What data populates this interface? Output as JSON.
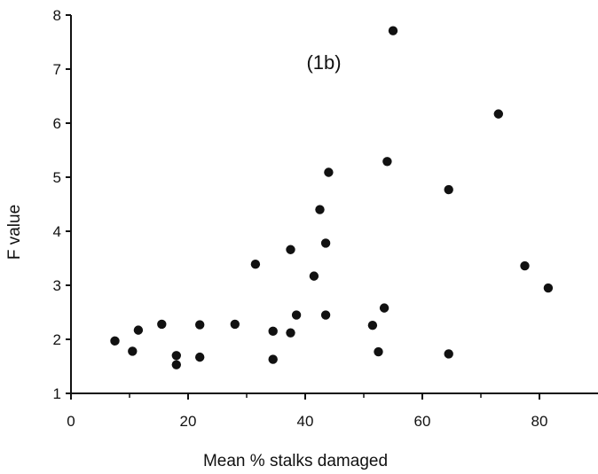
{
  "chart_data": {
    "type": "scatter",
    "title": "",
    "annotation": "(1b)",
    "xlabel": "Mean % stalks damaged",
    "ylabel": "F value",
    "xlim": [
      0,
      90
    ],
    "ylim": [
      1,
      8
    ],
    "xticks": [
      0,
      20,
      40,
      60,
      80
    ],
    "xtick_labels": [
      "0",
      "20",
      "40",
      "60",
      "80"
    ],
    "yticks": [
      1,
      2,
      3,
      4,
      5,
      6,
      7,
      8
    ],
    "ytick_labels": [
      "1",
      "2",
      "3",
      "4",
      "5",
      "6",
      "7",
      "8"
    ],
    "grid": false,
    "legend": "none",
    "marker_color": "#111111",
    "points": [
      {
        "x": 7.5,
        "y": 1.97
      },
      {
        "x": 10.5,
        "y": 1.78
      },
      {
        "x": 11.5,
        "y": 2.17
      },
      {
        "x": 15.5,
        "y": 2.28
      },
      {
        "x": 18,
        "y": 1.53
      },
      {
        "x": 18,
        "y": 1.7
      },
      {
        "x": 22,
        "y": 1.67
      },
      {
        "x": 22,
        "y": 2.27
      },
      {
        "x": 28,
        "y": 2.28
      },
      {
        "x": 31.5,
        "y": 3.39
      },
      {
        "x": 34.5,
        "y": 2.15
      },
      {
        "x": 34.5,
        "y": 1.63
      },
      {
        "x": 37.5,
        "y": 2.12
      },
      {
        "x": 37.5,
        "y": 3.66
      },
      {
        "x": 38.5,
        "y": 2.45
      },
      {
        "x": 41.5,
        "y": 3.17
      },
      {
        "x": 42.5,
        "y": 4.4
      },
      {
        "x": 43.5,
        "y": 3.78
      },
      {
        "x": 43.5,
        "y": 2.45
      },
      {
        "x": 44,
        "y": 5.09
      },
      {
        "x": 51.5,
        "y": 2.26
      },
      {
        "x": 52.5,
        "y": 1.77
      },
      {
        "x": 53.5,
        "y": 2.58
      },
      {
        "x": 54,
        "y": 5.29
      },
      {
        "x": 55,
        "y": 7.71
      },
      {
        "x": 64.5,
        "y": 4.77
      },
      {
        "x": 64.5,
        "y": 1.73
      },
      {
        "x": 73,
        "y": 6.17
      },
      {
        "x": 77.5,
        "y": 3.36
      },
      {
        "x": 81.5,
        "y": 2.95
      }
    ]
  }
}
